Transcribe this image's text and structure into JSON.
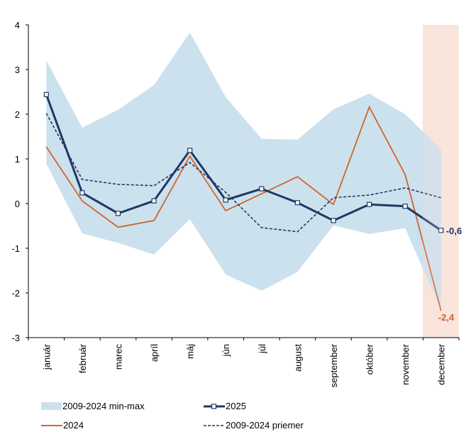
{
  "chart_data": {
    "type": "line",
    "title": "",
    "xlabel": "",
    "ylabel": "",
    "ylim": [
      -3,
      4
    ],
    "yticks": [
      "4",
      "3",
      "2",
      "1",
      "0",
      "-1",
      "-2",
      "-3"
    ],
    "grid": false,
    "categories": [
      "január",
      "február",
      "marec",
      "apríl",
      "máj",
      "jún",
      "júl",
      "august",
      "september",
      "október",
      "november",
      "december"
    ],
    "highlight_category": "december",
    "band": {
      "name": "2009-2024 min-max",
      "color": "#cce1ee",
      "max": [
        3.2,
        1.7,
        2.1,
        2.65,
        3.83,
        2.38,
        1.45,
        1.43,
        2.11,
        2.46,
        2.0,
        1.22
      ],
      "min": [
        0.89,
        -0.67,
        -0.88,
        -1.14,
        -0.35,
        -1.59,
        -1.95,
        -1.53,
        -0.49,
        -0.68,
        -0.55,
        -2.38
      ]
    },
    "series": [
      {
        "name": "2025",
        "color": "#1f3864",
        "style": "solid-markers",
        "values": [
          2.44,
          0.24,
          -0.22,
          0.06,
          1.19,
          0.08,
          0.33,
          0.02,
          -0.38,
          -0.02,
          -0.06,
          -0.6
        ]
      },
      {
        "name": "2024",
        "color": "#d2642a",
        "style": "solid",
        "values": [
          1.27,
          0.06,
          -0.53,
          -0.38,
          1.06,
          -0.16,
          0.22,
          0.6,
          -0.02,
          2.16,
          0.65,
          -2.4
        ]
      },
      {
        "name": "2009-2024 priemer",
        "color": "#1f3864",
        "style": "dashed",
        "values": [
          2.02,
          0.54,
          0.43,
          0.4,
          0.92,
          0.25,
          -0.54,
          -0.63,
          0.13,
          0.19,
          0.35,
          0.13
        ]
      }
    ],
    "annotations": [
      {
        "series": "2025",
        "category": "december",
        "text": "-0,6"
      },
      {
        "series": "2024",
        "category": "december",
        "text": "-2,4"
      }
    ],
    "legend": {
      "placement": "bottom",
      "items": [
        {
          "label": "2009-2024 min-max",
          "kind": "area"
        },
        {
          "label": "2025",
          "kind": "line-marker"
        },
        {
          "label": "2024",
          "kind": "line"
        },
        {
          "label": "2009-2024 priemer",
          "kind": "dashed"
        }
      ]
    }
  },
  "colors": {
    "highlight": "#f9e5dc",
    "axis": "#000000"
  }
}
